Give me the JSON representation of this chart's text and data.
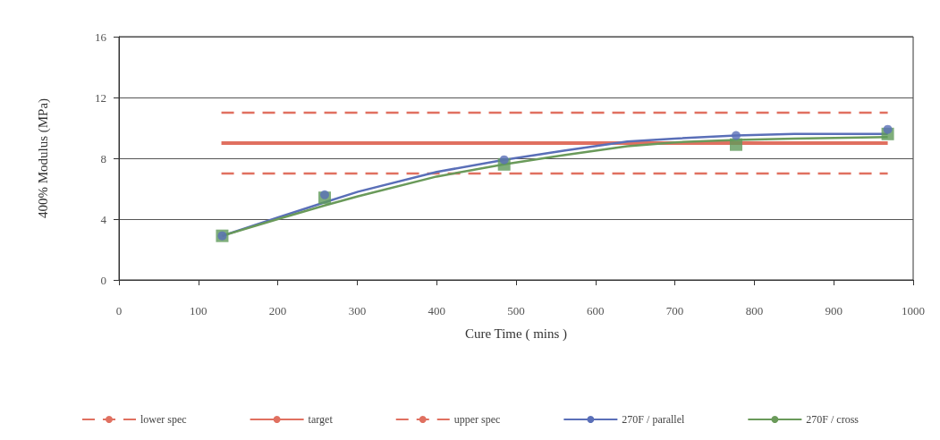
{
  "chart_data": {
    "type": "line",
    "xlabel": "Cure Time ( mins )",
    "ylabel": "400% Modulus (MPa)",
    "xlim": [
      0,
      1000
    ],
    "xticks": [
      0,
      100,
      200,
      300,
      400,
      500,
      600,
      700,
      800,
      900,
      1000
    ],
    "ylim": [
      0,
      16
    ],
    "yticks": [
      0,
      4,
      8,
      12,
      16
    ],
    "grid": "y",
    "legend": "bottom",
    "series": [
      {
        "name": "lower spec",
        "color": "#e07060",
        "line_style": "dashed",
        "marker": "none",
        "x": [
          129,
          968
        ],
        "values": [
          7,
          7
        ]
      },
      {
        "name": "target",
        "color": "#e07060",
        "line_style": "solid",
        "marker": "none",
        "x": [
          129,
          968
        ],
        "values": [
          9,
          9
        ]
      },
      {
        "name": "upper spec",
        "color": "#e07060",
        "line_style": "dashed",
        "marker": "none",
        "x": [
          129,
          968
        ],
        "values": [
          11,
          11
        ]
      },
      {
        "name": "270F / parallel",
        "color": "#5a6fb8",
        "line_style": "solid",
        "marker": "none",
        "x": [
          130,
          200,
          259,
          301,
          400,
          485,
          560,
          640,
          700,
          777,
          850,
          968
        ],
        "values": [
          2.9,
          4.1,
          5.1,
          5.8,
          7.1,
          7.9,
          8.5,
          9.1,
          9.3,
          9.5,
          9.6,
          9.6
        ]
      },
      {
        "name": "270F / cross",
        "color": "#6a9a5a",
        "line_style": "solid",
        "marker": "none",
        "x": [
          130,
          200,
          259,
          301,
          400,
          485,
          560,
          640,
          700,
          777,
          850,
          968
        ],
        "values": [
          2.9,
          4.0,
          4.9,
          5.5,
          6.8,
          7.6,
          8.2,
          8.8,
          9.05,
          9.2,
          9.3,
          9.4
        ]
      },
      {
        "type": "scatter",
        "color": "#5a6fb8",
        "marker": "circle",
        "x": [
          130,
          259,
          485,
          777,
          968
        ],
        "values": [
          2.9,
          5.6,
          7.9,
          9.5,
          9.9
        ]
      },
      {
        "type": "scatter",
        "color": "#5f9a5a",
        "marker": "square",
        "x": [
          130,
          259,
          485,
          777,
          968
        ],
        "values": [
          2.9,
          5.4,
          7.6,
          8.9,
          9.6
        ]
      }
    ]
  }
}
